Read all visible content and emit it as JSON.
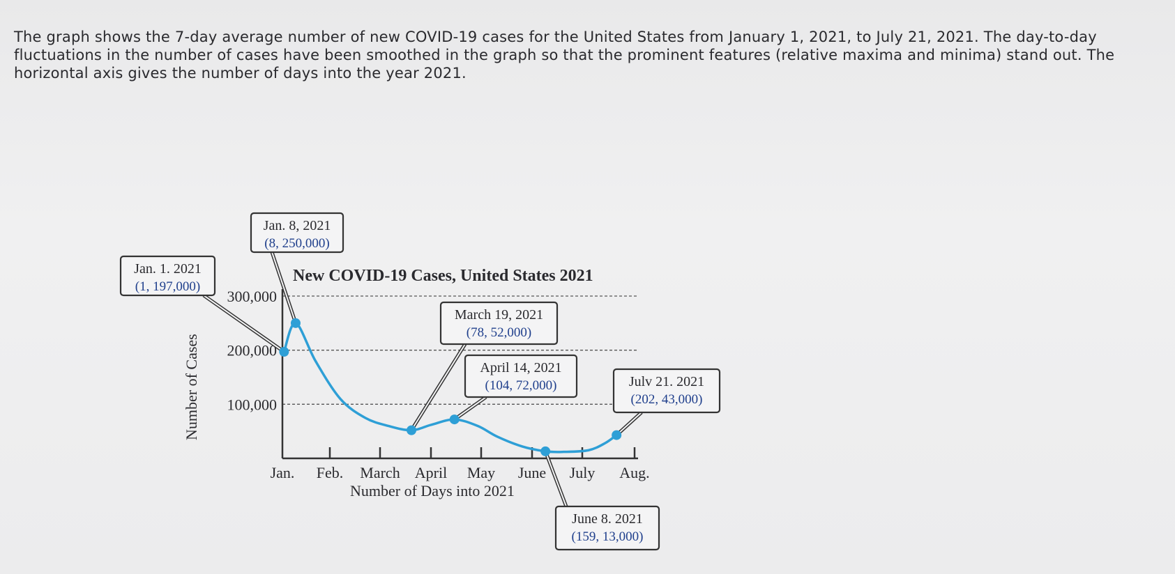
{
  "intro_text": "The graph shows the 7-day average number of new COVID-19 cases for the United States from January 1, 2021, to July 21, 2021. The day-to-day fluctuations in the number of cases have been smoothed in the graph so that the prominent features (relative maxima and minima) stand out. The horizontal axis gives the number of days into the year 2021.",
  "chart_data": {
    "type": "line",
    "title": "New COVID-19 Cases, United States 2021",
    "xlabel": "Number of Days into 2021",
    "ylabel": "Number of Cases",
    "xlim": [
      0,
      215
    ],
    "ylim": [
      0,
      300000
    ],
    "x_tick_labels": [
      "Jan.",
      "Feb.",
      "March",
      "April",
      "May",
      "June",
      "July",
      "Aug."
    ],
    "y_ticks": [
      100000,
      200000,
      300000
    ],
    "y_tick_labels": [
      "100,000",
      "200,000",
      "300,000"
    ],
    "grid": "horizontal dashed",
    "series": [
      {
        "color": "#2e9fd6",
        "x": [
          1,
          8,
          20,
          35,
          50,
          64,
          78,
          90,
          104,
          118,
          130,
          145,
          159,
          170,
          185,
          195,
          202
        ],
        "y": [
          197000,
          250000,
          180000,
          110000,
          75000,
          60000,
          52000,
          62000,
          72000,
          60000,
          40000,
          22000,
          13000,
          12000,
          15000,
          28000,
          43000
        ]
      }
    ],
    "annotations": [
      {
        "title": "Jan. 1. 2021",
        "coords": "(1, 197,000)",
        "x": 1,
        "y": 197000
      },
      {
        "title": "Jan. 8, 2021",
        "coords": "(8, 250,000)",
        "x": 8,
        "y": 250000
      },
      {
        "title": "March 19, 2021",
        "coords": "(78, 52,000)",
        "x": 78,
        "y": 52000
      },
      {
        "title": "April 14, 2021",
        "coords": "(104, 72,000)",
        "x": 104,
        "y": 72000
      },
      {
        "title": "June 8. 2021",
        "coords": "(159, 13,000)",
        "x": 159,
        "y": 13000
      },
      {
        "title": "Julv 21. 2021",
        "coords": "(202, 43,000)",
        "x": 202,
        "y": 43000
      }
    ]
  }
}
